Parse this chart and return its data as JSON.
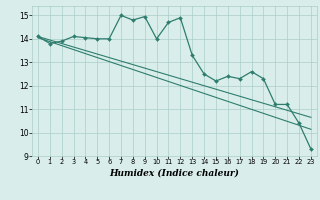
{
  "x": [
    0,
    1,
    2,
    3,
    4,
    5,
    6,
    7,
    8,
    9,
    10,
    11,
    12,
    13,
    14,
    15,
    16,
    17,
    18,
    19,
    20,
    21,
    22,
    23
  ],
  "line1": [
    14.1,
    13.8,
    13.9,
    14.1,
    14.05,
    14.0,
    14.0,
    15.0,
    14.8,
    14.95,
    14.0,
    14.7,
    14.9,
    13.3,
    12.5,
    12.2,
    12.4,
    12.3,
    12.6,
    12.3,
    11.2,
    11.2,
    10.4,
    9.3
  ],
  "regression1": [
    14.1,
    13.95,
    13.8,
    13.65,
    13.5,
    13.35,
    13.2,
    13.05,
    12.9,
    12.75,
    12.6,
    12.45,
    12.3,
    12.15,
    12.0,
    11.85,
    11.7,
    11.55,
    11.4,
    11.25,
    11.1,
    10.95,
    10.8,
    10.65
  ],
  "regression2": [
    14.05,
    13.88,
    13.71,
    13.54,
    13.37,
    13.2,
    13.03,
    12.86,
    12.69,
    12.52,
    12.35,
    12.18,
    12.01,
    11.84,
    11.67,
    11.5,
    11.33,
    11.16,
    10.99,
    10.82,
    10.65,
    10.48,
    10.31,
    10.14
  ],
  "line_color": "#2e7d6e",
  "bg_color": "#d9eeeb",
  "grid_color": "#aaccc8",
  "xlabel": "Humidex (Indice chaleur)",
  "ylim": [
    9,
    15.4
  ],
  "xlim": [
    -0.5,
    23.5
  ],
  "yticks": [
    9,
    10,
    11,
    12,
    13,
    14,
    15
  ],
  "xticks": [
    0,
    1,
    2,
    3,
    4,
    5,
    6,
    7,
    8,
    9,
    10,
    11,
    12,
    13,
    14,
    15,
    16,
    17,
    18,
    19,
    20,
    21,
    22,
    23
  ]
}
